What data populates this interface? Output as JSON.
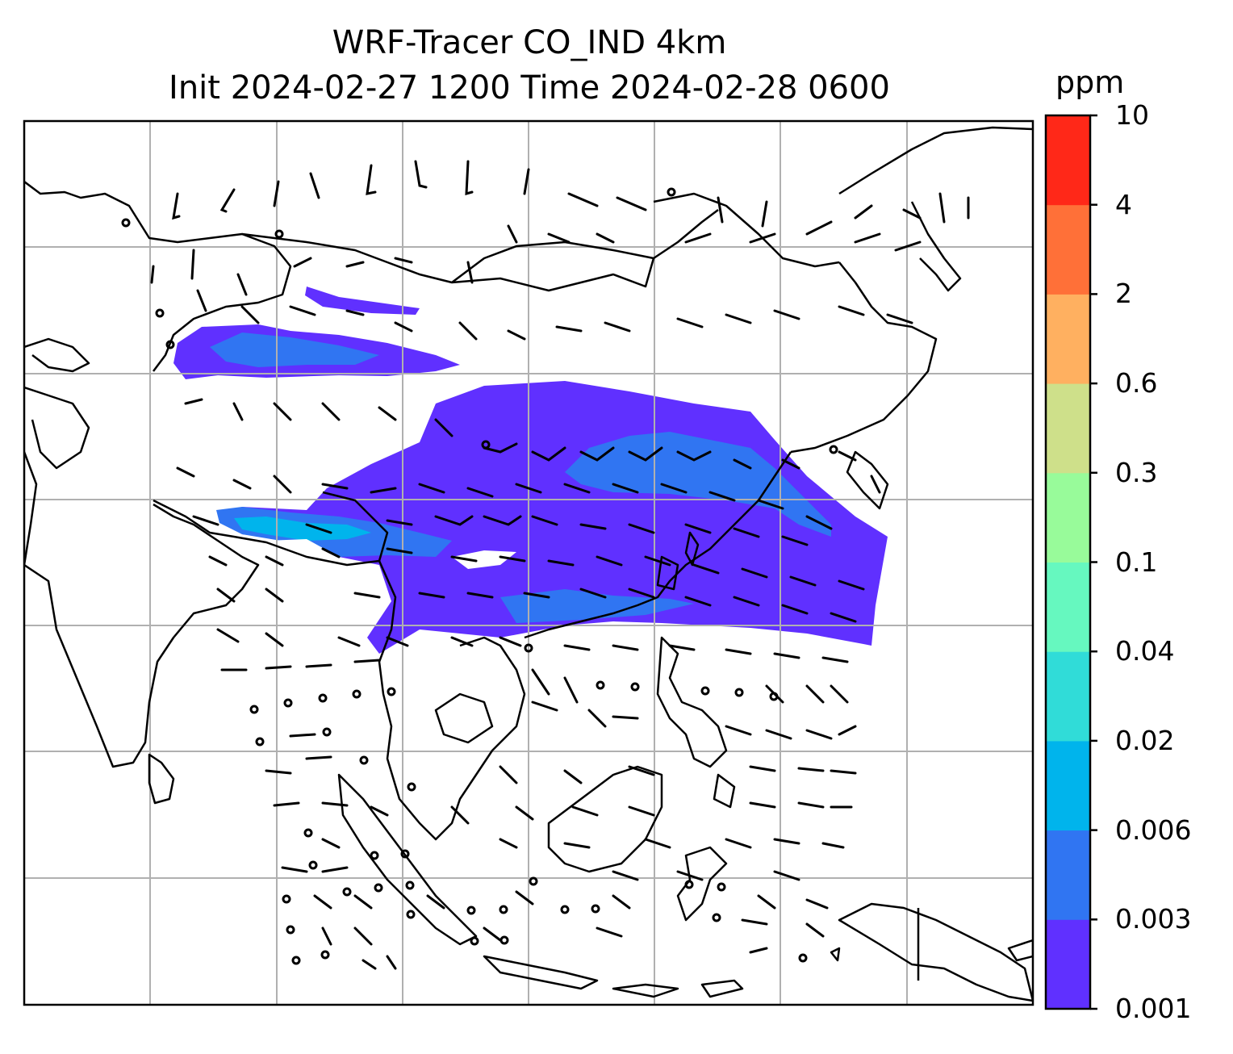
{
  "title_line1": "WRF-Tracer CO_IND 4km",
  "title_line2": "Init 2024-02-27 1200 Time 2024-02-28 0600",
  "colorbar": {
    "units": "ppm",
    "ticks": [
      "0.001",
      "0.003",
      "0.006",
      "0.02",
      "0.04",
      "0.1",
      "0.3",
      "0.6",
      "2",
      "4",
      "10"
    ],
    "colors": [
      "#6030ff",
      "#3075f2",
      "#00b4ec",
      "#30dcd8",
      "#66f8bf",
      "#98fb9a",
      "#cee08a",
      "#ffb060",
      "#ff7038",
      "#ff2818"
    ]
  },
  "map": {
    "background": "#ffffff",
    "gridlines": true,
    "features": [
      "coastlines",
      "country-borders",
      "wind-barbs",
      "tracer-plume"
    ]
  }
}
